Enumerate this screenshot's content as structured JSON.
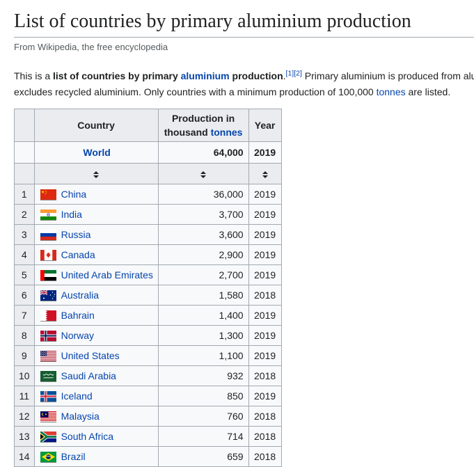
{
  "page": {
    "title": "List of countries by primary aluminium production",
    "subtitle": "From Wikipedia, the free encyclopedia"
  },
  "intro": {
    "line1": {
      "pre": "This is a ",
      "bold_pre": "list of countries by primary ",
      "aluminium_link": "aluminium",
      "bold_post": " production",
      "period": ".",
      "ref1": "[1]",
      "ref2": "[2]",
      "after": " Primary aluminium is produced from alumina"
    },
    "line2": {
      "pre": "excludes recycled aluminium. Only countries with a minimum production of 100,000 ",
      "tonnes_link": "tonnes",
      "post": " are listed."
    }
  },
  "table": {
    "headers": {
      "rank": "",
      "country": "Country",
      "production_line1": "Production in",
      "production_line2_pre": "thousand ",
      "production_tonnes_link": "tonnes",
      "year": "Year"
    },
    "world_row": {
      "country": "World",
      "production": "64,000",
      "year": "2019"
    },
    "rows": [
      {
        "rank": "1",
        "country": "China",
        "flag": "china",
        "production": "36,000",
        "year": "2019"
      },
      {
        "rank": "2",
        "country": "India",
        "flag": "india",
        "production": "3,700",
        "year": "2019"
      },
      {
        "rank": "3",
        "country": "Russia",
        "flag": "russia",
        "production": "3,600",
        "year": "2019"
      },
      {
        "rank": "4",
        "country": "Canada",
        "flag": "canada",
        "production": "2,900",
        "year": "2019"
      },
      {
        "rank": "5",
        "country": "United Arab Emirates",
        "flag": "united-arab-emirates",
        "production": "2,700",
        "year": "2019"
      },
      {
        "rank": "6",
        "country": "Australia",
        "flag": "australia",
        "production": "1,580",
        "year": "2018"
      },
      {
        "rank": "7",
        "country": "Bahrain",
        "flag": "bahrain",
        "production": "1,400",
        "year": "2019"
      },
      {
        "rank": "8",
        "country": "Norway",
        "flag": "norway",
        "production": "1,300",
        "year": "2019"
      },
      {
        "rank": "9",
        "country": "United States",
        "flag": "united-states",
        "production": "1,100",
        "year": "2019"
      },
      {
        "rank": "10",
        "country": "Saudi Arabia",
        "flag": "saudi-arabia",
        "production": "932",
        "year": "2018"
      },
      {
        "rank": "11",
        "country": "Iceland",
        "flag": "iceland",
        "production": "850",
        "year": "2019"
      },
      {
        "rank": "12",
        "country": "Malaysia",
        "flag": "malaysia",
        "production": "760",
        "year": "2018"
      },
      {
        "rank": "13",
        "country": "South Africa",
        "flag": "south-africa",
        "production": "714",
        "year": "2018"
      },
      {
        "rank": "14",
        "country": "Brazil",
        "flag": "brazil",
        "production": "659",
        "year": "2018"
      }
    ]
  },
  "colors": {
    "link_blue": "#0645ad",
    "header_bg": "#eaecf0",
    "table_border": "#a2a9b1",
    "table_bg": "#f8f9fa",
    "text": "#202122",
    "subtitle_gray": "#54595d"
  }
}
